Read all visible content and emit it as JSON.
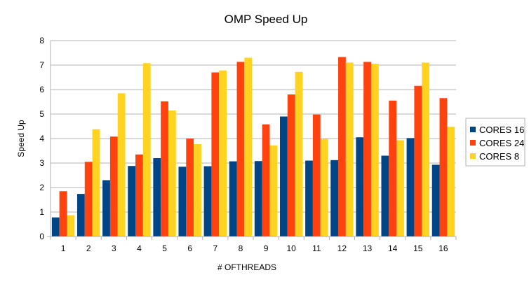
{
  "chart_data": {
    "type": "bar",
    "title": "OMP Speed Up",
    "xlabel": "# OFTHREADS",
    "ylabel": "Speed Up",
    "ylim": [
      0,
      8
    ],
    "yticks": [
      0,
      1,
      2,
      3,
      4,
      5,
      6,
      7,
      8
    ],
    "grid": true,
    "legend_position": "right",
    "categories": [
      "1",
      "2",
      "3",
      "4",
      "5",
      "6",
      "7",
      "8",
      "9",
      "10",
      "11",
      "12",
      "13",
      "14",
      "15",
      "16"
    ],
    "series": [
      {
        "name": "CORES 16",
        "color": "#004586",
        "values": [
          0.78,
          1.74,
          2.3,
          2.88,
          3.2,
          2.85,
          2.87,
          3.07,
          3.08,
          4.9,
          3.1,
          3.12,
          4.05,
          3.3,
          4.02,
          2.93
        ]
      },
      {
        "name": "CORES 24",
        "color": "#ff420e",
        "values": [
          1.85,
          3.05,
          4.08,
          3.35,
          5.52,
          4.0,
          6.7,
          7.13,
          4.58,
          5.8,
          4.98,
          7.33,
          7.13,
          5.55,
          6.15,
          5.65
        ]
      },
      {
        "name": "CORES 8",
        "color": "#ffd320",
        "values": [
          0.87,
          4.38,
          5.85,
          7.08,
          5.15,
          3.77,
          6.78,
          7.3,
          3.72,
          6.72,
          3.98,
          7.1,
          7.05,
          3.93,
          7.1,
          4.48
        ]
      }
    ]
  }
}
